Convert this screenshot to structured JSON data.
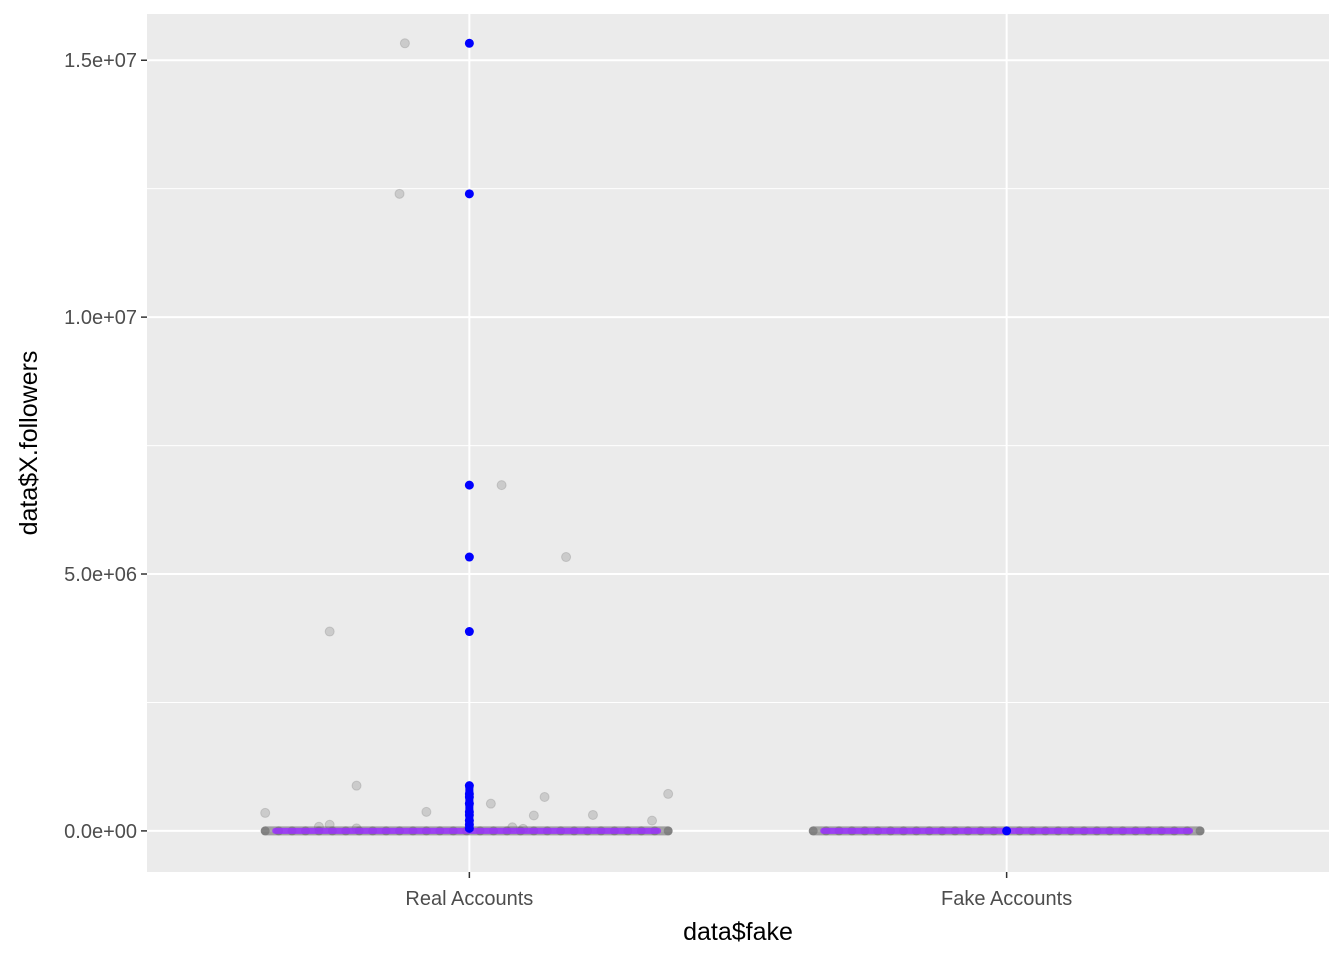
{
  "chart_data": {
    "type": "scatter",
    "title": "",
    "xlabel": "data$fake",
    "ylabel": "data$X.followers",
    "categories": [
      "Real Accounts",
      "Fake Accounts"
    ],
    "ylim": [
      -800000,
      15900000
    ],
    "y_ticks": [
      0,
      5000000,
      10000000,
      15000000
    ],
    "y_tick_labels": [
      "0.0e+00",
      "5.0e+06",
      "1.0e+07",
      "1.5e+07"
    ],
    "grid": true,
    "panel_background": "#ebebeb",
    "grid_color": "#ffffff",
    "series": [
      {
        "layer": "jittered points",
        "color": "#808080",
        "alpha": 0.3,
        "points": [
          {
            "category": "Real Accounts",
            "jitter": -0.12,
            "y": 15330000
          },
          {
            "category": "Real Accounts",
            "jitter": -0.13,
            "y": 12400000
          },
          {
            "category": "Real Accounts",
            "jitter": 0.06,
            "y": 6730000
          },
          {
            "category": "Real Accounts",
            "jitter": 0.18,
            "y": 5330000
          },
          {
            "category": "Real Accounts",
            "jitter": -0.26,
            "y": 3880000
          },
          {
            "category": "Real Accounts",
            "jitter": -0.21,
            "y": 880000
          },
          {
            "category": "Real Accounts",
            "jitter": 0.37,
            "y": 720000
          },
          {
            "category": "Real Accounts",
            "jitter": 0.14,
            "y": 660000
          },
          {
            "category": "Real Accounts",
            "jitter": 0.04,
            "y": 530000
          },
          {
            "category": "Real Accounts",
            "jitter": -0.08,
            "y": 370000
          },
          {
            "category": "Real Accounts",
            "jitter": -0.38,
            "y": 350000
          },
          {
            "category": "Real Accounts",
            "jitter": 0.23,
            "y": 310000
          },
          {
            "category": "Real Accounts",
            "jitter": 0.12,
            "y": 300000
          },
          {
            "category": "Real Accounts",
            "jitter": 0.34,
            "y": 200000
          },
          {
            "category": "Real Accounts",
            "jitter": -0.26,
            "y": 120000
          },
          {
            "category": "Real Accounts",
            "jitter": -0.28,
            "y": 80000
          },
          {
            "category": "Real Accounts",
            "jitter": 0.08,
            "y": 70000
          },
          {
            "category": "Real Accounts",
            "jitter": -0.21,
            "y": 50000
          },
          {
            "category": "Real Accounts",
            "jitter": 0.1,
            "y": 40000
          }
        ]
      },
      {
        "layer": "raw values",
        "color": "#0000ff",
        "points": [
          {
            "category": "Real Accounts",
            "y": 15330000
          },
          {
            "category": "Real Accounts",
            "y": 12400000
          },
          {
            "category": "Real Accounts",
            "y": 6730000
          },
          {
            "category": "Real Accounts",
            "y": 5330000
          },
          {
            "category": "Real Accounts",
            "y": 3880000
          },
          {
            "category": "Real Accounts",
            "y": 880000
          },
          {
            "category": "Real Accounts",
            "y": 720000
          },
          {
            "category": "Real Accounts",
            "y": 660000
          },
          {
            "category": "Real Accounts",
            "y": 530000
          },
          {
            "category": "Real Accounts",
            "y": 370000
          },
          {
            "category": "Real Accounts",
            "y": 310000
          },
          {
            "category": "Real Accounts",
            "y": 200000
          },
          {
            "category": "Real Accounts",
            "y": 120000
          },
          {
            "category": "Real Accounts",
            "y": 50000
          },
          {
            "category": "Fake Accounts",
            "y": 0
          }
        ]
      },
      {
        "layer": "near-zero band",
        "color": "#9b30ff",
        "bands": [
          {
            "category": "Real Accounts",
            "y": 0,
            "jitter_range": [
              -0.38,
              0.37
            ]
          },
          {
            "category": "Fake Accounts",
            "y": 0,
            "jitter_range": [
              -0.36,
              0.36
            ]
          }
        ]
      }
    ]
  }
}
